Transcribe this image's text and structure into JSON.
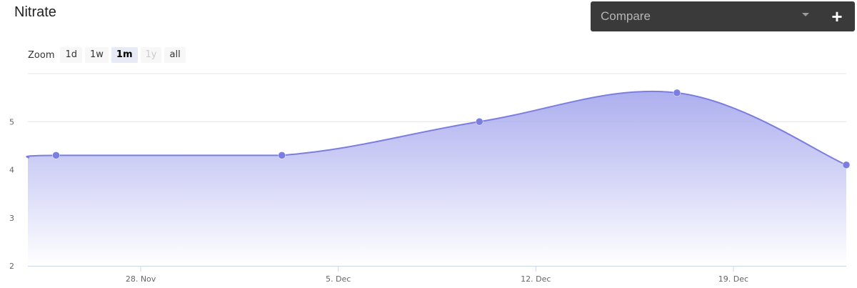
{
  "header": {
    "title": "Nitrate"
  },
  "compare": {
    "placeholder": "Compare",
    "add_icon": "plus-icon",
    "caret_icon": "caret-down-icon"
  },
  "zoom": {
    "label": "Zoom",
    "buttons": [
      {
        "label": "1d",
        "state": "normal"
      },
      {
        "label": "1w",
        "state": "normal"
      },
      {
        "label": "1m",
        "state": "selected"
      },
      {
        "label": "1y",
        "state": "disabled"
      },
      {
        "label": "all",
        "state": "normal"
      }
    ]
  },
  "chart_data": {
    "type": "area",
    "title": "Nitrate",
    "xlabel": "",
    "ylabel": "",
    "x_tick_labels": [
      "28. Nov",
      "5. Dec",
      "12. Dec",
      "19. Dec"
    ],
    "x_tick_dates": [
      "2019-11-28",
      "2019-12-05",
      "2019-12-12",
      "2019-12-19"
    ],
    "y_tick_labels": [
      "2",
      "3",
      "4",
      "5"
    ],
    "y_ticks": [
      2,
      3,
      4,
      5
    ],
    "xlim": [
      "2019-11-24",
      "2019-12-23"
    ],
    "ylim": [
      2,
      6
    ],
    "grid": true,
    "legend": "none",
    "series": [
      {
        "x": [
          "2019-11-24",
          "2019-11-25",
          "2019-12-03",
          "2019-12-10",
          "2019-12-17",
          "2019-12-23"
        ],
        "y": [
          4.25,
          4.3,
          4.3,
          5.0,
          5.6,
          4.1
        ],
        "markers": [
          false,
          true,
          true,
          true,
          true,
          true
        ]
      }
    ],
    "colors": {
      "line": "#7b7ee0",
      "fill_top": "#a9abee",
      "fill_bottom": "#ffffff",
      "grid": "#e6e6e6",
      "axis": "#ccd6eb"
    }
  }
}
